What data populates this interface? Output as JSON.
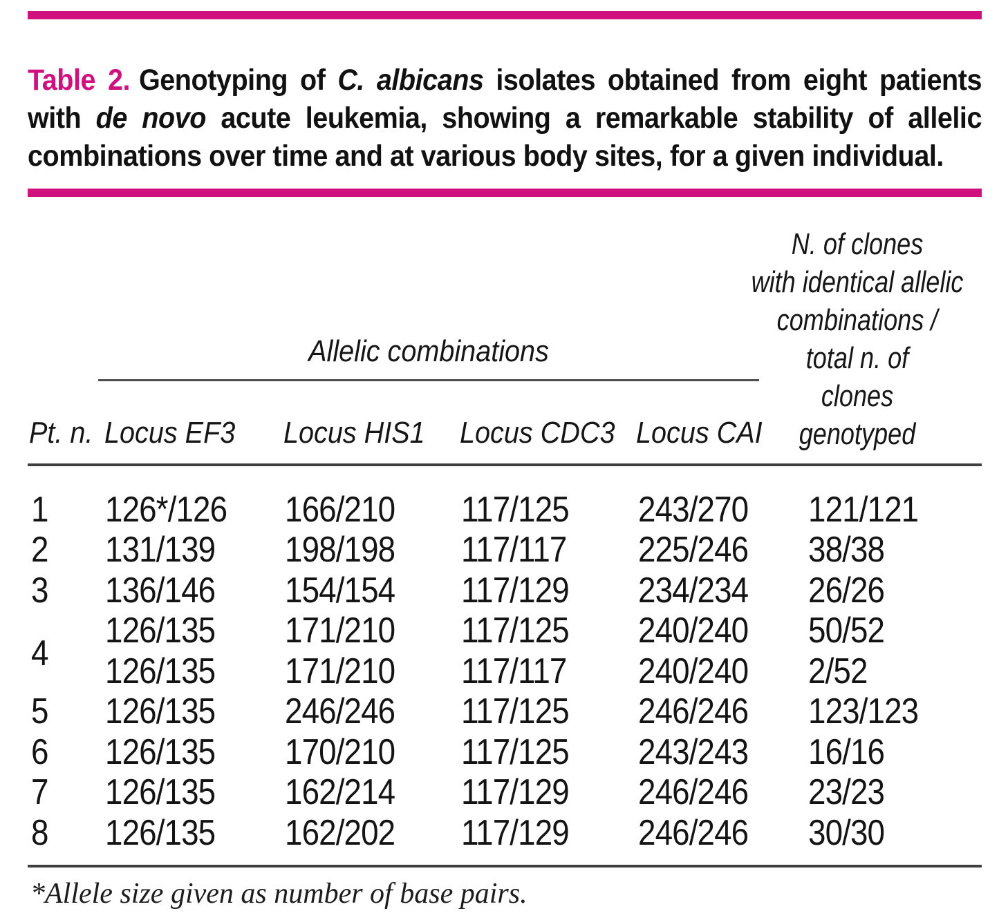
{
  "colors": {
    "accent_magenta": "#d0107e",
    "rule_dark": "#3f3f3f",
    "text": "#151515"
  },
  "caption": {
    "label": "Table 2.",
    "part1": "Genotyping of ",
    "italic1": "C. albicans",
    "part2": " isolates obtained from eight patients with ",
    "italic2": "de novo",
    "part3": " acute leukemia, showing a remarkable sta­bility of allelic combinations over time and at various body sites, for a given individual."
  },
  "table": {
    "group_header": "Allelic combinations",
    "columns": {
      "pt": "Pt. n.",
      "ef3": "Locus EF3",
      "his1": "Locus HIS1",
      "cdc3": "Locus CDC3",
      "cai": "Locus CAI"
    },
    "right_header_lines": {
      "0": "N. of clones",
      "1": "with identical allelic",
      "2": "combinations /",
      "3": "total n. of",
      "4": "clones",
      "5": "genotyped"
    },
    "patient4_label": "4",
    "rows": [
      {
        "pt": "1",
        "ef3": "126*/126",
        "his1": "166/210",
        "cdc3": "117/125",
        "cai": "243/270",
        "clones": "121/121"
      },
      {
        "pt": "2",
        "ef3": "131/139",
        "his1": "198/198",
        "cdc3": "117/117",
        "cai": "225/246",
        "clones": "38/38"
      },
      {
        "pt": "3",
        "ef3": "136/146",
        "his1": "154/154",
        "cdc3": "117/129",
        "cai": "234/234",
        "clones": "26/26"
      },
      {
        "pt": "",
        "ef3": "126/135",
        "his1": "171/210",
        "cdc3": "117/125",
        "cai": "240/240",
        "clones": "50/52"
      },
      {
        "pt": "",
        "ef3": "126/135",
        "his1": "171/210",
        "cdc3": "117/117",
        "cai": "240/240",
        "clones": "2/52"
      },
      {
        "pt": "5",
        "ef3": "126/135",
        "his1": "246/246",
        "cdc3": "117/125",
        "cai": "246/246",
        "clones": "123/123"
      },
      {
        "pt": "6",
        "ef3": "126/135",
        "his1": "170/210",
        "cdc3": "117/125",
        "cai": "243/243",
        "clones": "16/16"
      },
      {
        "pt": "7",
        "ef3": "126/135",
        "his1": "162/214",
        "cdc3": "117/129",
        "cai": "246/246",
        "clones": "23/23"
      },
      {
        "pt": "8",
        "ef3": "126/135",
        "his1": "162/202",
        "cdc3": "117/129",
        "cai": "246/246",
        "clones": "30/30"
      }
    ]
  },
  "footnote": "*Allele size given as number of base pairs."
}
